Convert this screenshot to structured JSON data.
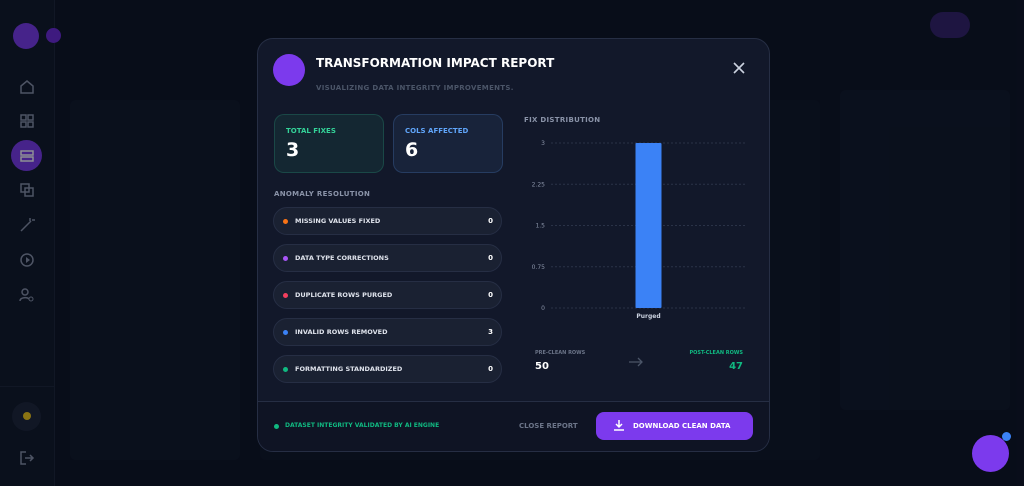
{
  "modal": {
    "title": "TRANSFORMATION IMPACT REPORT",
    "subtitle": "VISUALIZING DATA INTEGRITY IMPROVEMENTS.",
    "stats": [
      {
        "label": "TOTAL FIXES",
        "value": 3,
        "color": "#34d399"
      },
      {
        "label": "COLS AFFECTED",
        "value": 6,
        "color": "#60a5fa"
      }
    ],
    "anomaly_title": "ANOMALY RESOLUTION",
    "anomalies": [
      {
        "label": "MISSING VALUES FIXED",
        "value": 0,
        "color": "#f97316"
      },
      {
        "label": "DATA TYPE CORRECTIONS",
        "value": 0,
        "color": "#a855f7"
      },
      {
        "label": "DUPLICATE ROWS PURGED",
        "value": 0,
        "color": "#f43f5e"
      },
      {
        "label": "INVALID ROWS REMOVED",
        "value": 3,
        "color": "#3b82f6"
      },
      {
        "label": "FORMATTING STANDARDIZED",
        "value": 0,
        "color": "#10b981"
      }
    ],
    "pre_label": "PRE-CLEAN ROWS",
    "pre_value": 50,
    "post_label": "POST-CLEAN ROWS",
    "post_value": 47,
    "footer_note": "DATASET INTEGRITY VALIDATED BY AI ENGINE",
    "close": "CLOSE REPORT",
    "download": "DOWNLOAD CLEAN DATA"
  },
  "chart_data": {
    "type": "bar",
    "title": "FIX DISTRIBUTION",
    "categories": [
      "Purged"
    ],
    "values": [
      3
    ],
    "color": "#3b82f6",
    "ylim": [
      0,
      3
    ],
    "yticks": [
      0,
      0.75,
      1.5,
      2.25,
      3
    ],
    "grid": true
  }
}
